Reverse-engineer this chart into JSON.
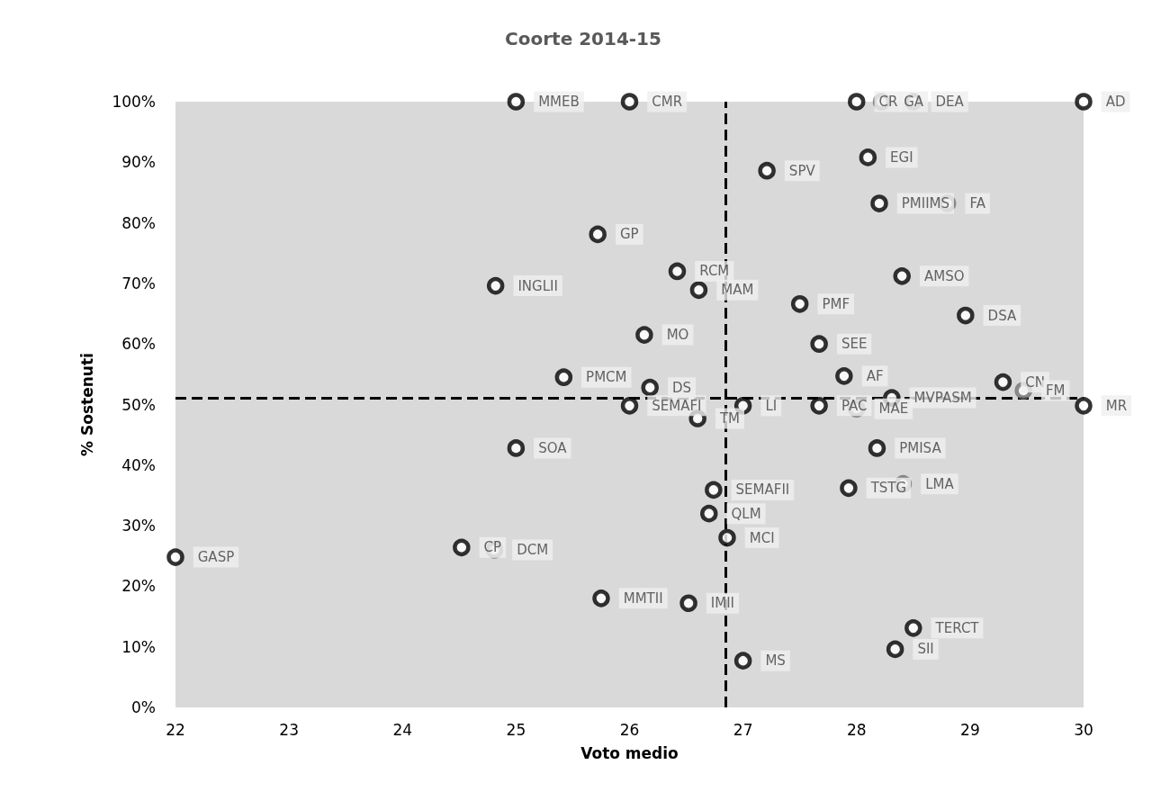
{
  "chart_data": {
    "type": "scatter",
    "title": "Coorte 2014-15",
    "xlabel": "Voto medio",
    "ylabel": "% Sostenuti",
    "xlim": [
      22,
      30
    ],
    "xticks": [
      22,
      23,
      24,
      25,
      26,
      27,
      28,
      29,
      30
    ],
    "ylim": [
      0,
      100
    ],
    "yticks": [
      {
        "value": 0,
        "label": "0%"
      },
      {
        "value": 10,
        "label": "10%"
      },
      {
        "value": 20,
        "label": "20%"
      },
      {
        "value": 30,
        "label": "30%"
      },
      {
        "value": 40,
        "label": "40%"
      },
      {
        "value": 50,
        "label": "50%"
      },
      {
        "value": 60,
        "label": "60%"
      },
      {
        "value": 70,
        "label": "70%"
      },
      {
        "value": 80,
        "label": "80%"
      },
      {
        "value": 90,
        "label": "90%"
      },
      {
        "value": 100,
        "label": "100%"
      }
    ],
    "grid": false,
    "marker": "circle",
    "series": [
      {
        "x": [
          25.0,
          26.0,
          28.0,
          28.22,
          28.5,
          30,
          28.1,
          27.21,
          28.2,
          28.8,
          25.72,
          26.42,
          24.82,
          28.4,
          26.61,
          27.5,
          28.96,
          26.13,
          27.67,
          25.42,
          27.89,
          29.29,
          26.18,
          29.47,
          28.31,
          26.0,
          27.0,
          27.67,
          28.0,
          30,
          26.6,
          25.0,
          28.18,
          26.74,
          27.93,
          28.41,
          26.7,
          26.86,
          24.52,
          24.81,
          22,
          25.75,
          26.52,
          28.5,
          28.34,
          27.0
        ],
        "values": [
          100,
          100,
          100,
          100,
          100,
          100,
          90.8,
          88.6,
          83.2,
          83.2,
          78.1,
          72.0,
          69.6,
          71.2,
          68.9,
          66.6,
          64.7,
          61.5,
          60.0,
          54.5,
          54.7,
          53.7,
          52.8,
          52.3,
          51.1,
          49.8,
          49.8,
          49.8,
          49.3,
          49.8,
          47.7,
          42.8,
          42.8,
          35.9,
          36.2,
          36.9,
          32.0,
          28.0,
          26.4,
          26.0,
          24.8,
          18.0,
          17.2,
          13.1,
          9.6,
          7.7
        ],
        "value_labels": [
          "MMEB",
          "CMR",
          "CR",
          "GA",
          "DEA",
          "AD",
          "EGI",
          "SPV",
          "PMIIMS",
          "FA",
          "GP",
          "RCM",
          "INGLII",
          "AMSO",
          "MAM",
          "PMF",
          "DSA",
          "MO",
          "SEE",
          "PMCM",
          "AF",
          "CN",
          "DS",
          "FM",
          "MVPASM",
          "SEMAFI",
          "LI",
          "PAC",
          "MAE",
          "MR",
          "TM",
          "SOA",
          "PMISA",
          "SEMAFII",
          "TSTG",
          "LMA",
          "QLM",
          "MCI",
          "CP",
          "DCM",
          "GASP",
          "MMTII",
          "IMII",
          "TERCT",
          "SII",
          "MS"
        ],
        "colors": [
          "#000000",
          "#000000",
          "#000000",
          "#707070",
          "#707070",
          "#000000",
          "#000000",
          "#000000",
          "#000000",
          "#707070",
          "#000000",
          "#000000",
          "#000000",
          "#000000",
          "#000000",
          "#000000",
          "#000000",
          "#000000",
          "#000000",
          "#000000",
          "#000000",
          "#000000",
          "#000000",
          "#707070",
          "#000000",
          "#000000",
          "#000000",
          "#000000",
          "#707070",
          "#000000",
          "#000000",
          "#000000",
          "#000000",
          "#000000",
          "#000000",
          "#707070",
          "#000000",
          "#000000",
          "#000000",
          "#707070",
          "#000000",
          "#000000",
          "#000000",
          "#000000",
          "#000000",
          "#000000"
        ]
      }
    ],
    "ref_lines": [
      {
        "axis": "x",
        "value": 26.85,
        "color": "#000000",
        "line_style": "dashed"
      },
      {
        "axis": "y",
        "value": 51.1,
        "color": "#000000",
        "line_style": "dashed"
      }
    ]
  }
}
